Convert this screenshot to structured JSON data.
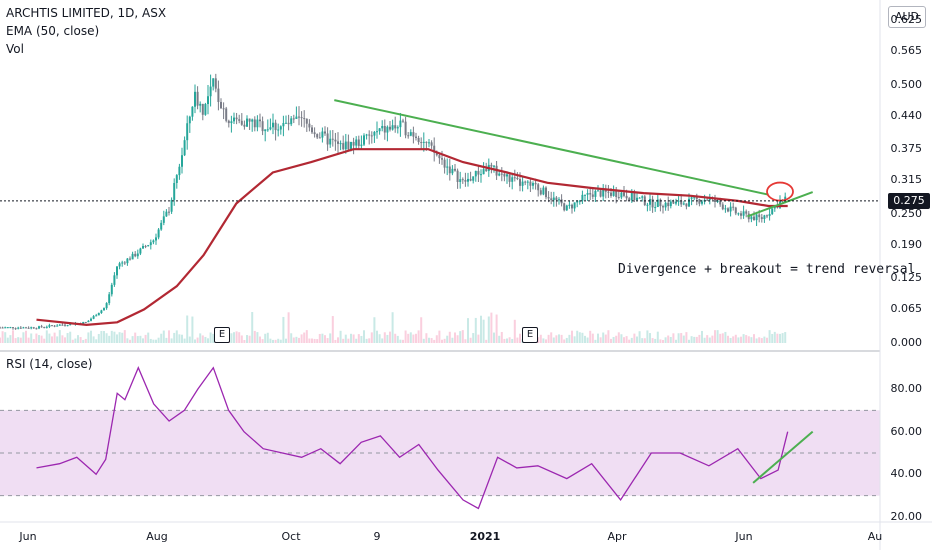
{
  "legend": {
    "symbol": "ARCHTIS LIMITED, 1D, ASX",
    "ema": "EMA (50, close)",
    "vol": "Vol"
  },
  "currency_button": "AUD",
  "price_axis": {
    "ticks": [
      "0.625",
      "0.565",
      "0.500",
      "0.440",
      "0.375",
      "0.315",
      "0.250",
      "0.190",
      "0.125",
      "0.065",
      "0.000"
    ],
    "values": [
      0.625,
      0.565,
      0.5,
      0.44,
      0.375,
      0.315,
      0.25,
      0.19,
      0.125,
      0.065,
      0.0
    ],
    "last_price": "0.275"
  },
  "rsi_axis": {
    "ticks": [
      "80.00",
      "60.00",
      "40.00",
      "20.00"
    ],
    "values": [
      80,
      60,
      40,
      20
    ]
  },
  "rsi_legend": "RSI (14, close)",
  "time_axis": [
    "Jun",
    "Aug",
    "Oct",
    "9",
    "2021",
    "Apr",
    "Jun",
    "Au"
  ],
  "earnings_badges": [
    "E",
    "E"
  ],
  "annotation": "Divergence + breakout = trend reversal",
  "colors": {
    "up": "#26a69a",
    "down": "#787b86",
    "ema": "#b22833",
    "trendline": "#4caf50",
    "rsi": "#9c27b0",
    "rsi_band": "#e1bee7",
    "circle": "#e53935"
  },
  "chart_data": [
    {
      "type": "line",
      "title": "ARCHTIS LIMITED, 1D, ASX",
      "series": [
        {
          "name": "ARCHTIS LIMITED, 1D, ASX",
          "x": [
            "2020-05-20",
            "2020-06-01",
            "2020-06-15",
            "2020-06-25",
            "2020-07-01",
            "2020-07-10",
            "2020-07-20",
            "2020-07-28",
            "2020-08-04",
            "2020-08-10",
            "2020-08-15",
            "2020-08-20",
            "2020-08-28",
            "2020-09-05",
            "2020-09-15",
            "2020-09-25",
            "2020-10-05",
            "2020-10-15",
            "2020-10-25",
            "2020-11-05",
            "2020-11-15",
            "2020-11-25",
            "2020-12-05",
            "2020-12-15",
            "2020-12-28",
            "2021-01-10",
            "2021-01-25",
            "2021-02-05",
            "2021-02-20",
            "2021-03-05",
            "2021-03-20",
            "2021-04-05",
            "2021-04-20",
            "2021-05-05",
            "2021-05-20",
            "2021-06-01",
            "2021-06-10",
            "2021-06-15"
          ],
          "values": [
            0.03,
            0.035,
            0.04,
            0.07,
            0.15,
            0.17,
            0.2,
            0.26,
            0.37,
            0.48,
            0.45,
            0.5,
            0.43,
            0.43,
            0.42,
            0.42,
            0.43,
            0.4,
            0.38,
            0.39,
            0.41,
            0.42,
            0.4,
            0.36,
            0.31,
            0.34,
            0.31,
            0.3,
            0.26,
            0.29,
            0.29,
            0.27,
            0.27,
            0.28,
            0.25,
            0.24,
            0.27,
            0.28
          ]
        },
        {
          "name": "EMA (50, close)",
          "x": [
            "2020-05-20",
            "2020-06-15",
            "2020-07-01",
            "2020-07-15",
            "2020-08-01",
            "2020-08-15",
            "2020-09-01",
            "2020-09-20",
            "2020-10-10",
            "2020-11-01",
            "2020-11-20",
            "2020-12-10",
            "2020-12-28",
            "2021-01-20",
            "2021-02-10",
            "2021-03-05",
            "2021-04-01",
            "2021-04-25",
            "2021-05-20",
            "2021-06-05",
            "2021-06-15"
          ],
          "values": [
            0.045,
            0.035,
            0.04,
            0.065,
            0.11,
            0.17,
            0.27,
            0.33,
            0.35,
            0.375,
            0.375,
            0.375,
            0.35,
            0.33,
            0.31,
            0.3,
            0.29,
            0.285,
            0.275,
            0.265,
            0.265
          ]
        }
      ],
      "ylim": [
        0,
        0.625
      ],
      "annotations": [
        "Divergence + breakout = trend reversal"
      ]
    },
    {
      "type": "line",
      "title": "RSI (14, close)",
      "series": [
        {
          "name": "RSI (14, close)",
          "x": [
            "2020-05-20",
            "2020-06-01",
            "2020-06-10",
            "2020-06-20",
            "2020-06-25",
            "2020-07-01",
            "2020-07-05",
            "2020-07-12",
            "2020-07-20",
            "2020-07-28",
            "2020-08-05",
            "2020-08-12",
            "2020-08-20",
            "2020-08-28",
            "2020-09-05",
            "2020-09-15",
            "2020-09-25",
            "2020-10-05",
            "2020-10-15",
            "2020-10-25",
            "2020-11-05",
            "2020-11-15",
            "2020-11-25",
            "2020-12-05",
            "2020-12-15",
            "2020-12-28",
            "2021-01-05",
            "2021-01-15",
            "2021-01-25",
            "2021-02-05",
            "2021-02-20",
            "2021-03-05",
            "2021-03-20",
            "2021-04-05",
            "2021-04-20",
            "2021-05-05",
            "2021-05-20",
            "2021-06-01",
            "2021-06-10",
            "2021-06-15"
          ],
          "values": [
            43,
            45,
            48,
            40,
            47,
            78,
            75,
            90,
            73,
            65,
            70,
            80,
            90,
            70,
            60,
            52,
            50,
            48,
            52,
            45,
            55,
            58,
            48,
            54,
            42,
            28,
            24,
            48,
            43,
            44,
            38,
            45,
            28,
            50,
            50,
            44,
            52,
            38,
            42,
            60
          ]
        }
      ],
      "ylim": [
        20,
        92
      ],
      "bands": [
        30,
        70
      ]
    }
  ]
}
